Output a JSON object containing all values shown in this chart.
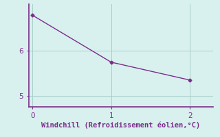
{
  "x": [
    0,
    1,
    2
  ],
  "y": [
    6.8,
    5.75,
    5.35
  ],
  "line_color": "#7b2d8b",
  "marker": "D",
  "marker_size": 2.5,
  "background_color": "#d8f0ee",
  "grid_color": "#a8cfc8",
  "axis_color": "#7b2d8b",
  "tick_color": "#7b2d8b",
  "xlabel": "Windchill (Refroidissement éolien,°C)",
  "xlabel_color": "#7b2d8b",
  "xlabel_fontsize": 7.5,
  "xticks": [
    0,
    1,
    2
  ],
  "yticks": [
    5,
    6
  ],
  "xlim": [
    -0.05,
    2.3
  ],
  "ylim": [
    4.75,
    7.05
  ],
  "tick_fontsize": 7.5,
  "linewidth": 1.0
}
